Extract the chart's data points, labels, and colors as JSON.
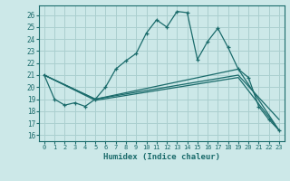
{
  "xlabel": "Humidex (Indice chaleur)",
  "bg_color": "#cce8e8",
  "grid_color": "#aacfcf",
  "line_color": "#1a6b6b",
  "xlim": [
    -0.5,
    23.5
  ],
  "ylim": [
    15.5,
    26.8
  ],
  "yticks": [
    16,
    17,
    18,
    19,
    20,
    21,
    22,
    23,
    24,
    25,
    26
  ],
  "xticks": [
    0,
    1,
    2,
    3,
    4,
    5,
    6,
    7,
    8,
    9,
    10,
    11,
    12,
    13,
    14,
    15,
    16,
    17,
    18,
    19,
    20,
    21,
    22,
    23
  ],
  "series": [
    {
      "x": [
        0,
        1,
        2,
        3,
        4,
        5,
        6,
        7,
        8,
        9,
        10,
        11,
        12,
        13,
        14,
        15,
        16,
        17,
        18,
        19,
        20,
        21,
        22,
        23
      ],
      "y": [
        21.0,
        19.0,
        18.5,
        18.7,
        18.4,
        19.0,
        20.0,
        21.5,
        22.2,
        22.8,
        24.5,
        25.6,
        25.0,
        26.3,
        26.2,
        22.3,
        23.8,
        24.9,
        23.3,
        21.5,
        20.8,
        18.4,
        17.3,
        16.4
      ],
      "markers": true
    },
    {
      "x": [
        0,
        5,
        19,
        23
      ],
      "y": [
        21.0,
        19.0,
        21.5,
        16.4
      ],
      "markers": false
    },
    {
      "x": [
        0,
        5,
        19,
        23
      ],
      "y": [
        21.0,
        19.0,
        21.0,
        17.3
      ],
      "markers": false
    },
    {
      "x": [
        0,
        5,
        19,
        23
      ],
      "y": [
        21.0,
        18.9,
        20.8,
        16.4
      ],
      "markers": false
    }
  ]
}
